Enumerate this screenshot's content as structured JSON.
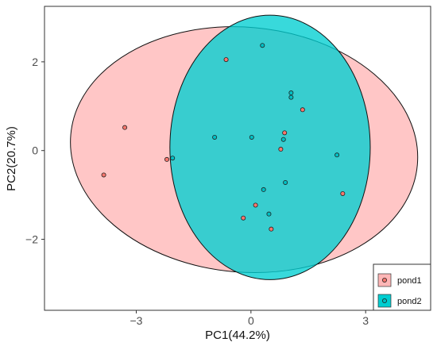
{
  "chart_data": {
    "type": "scatter",
    "title": "",
    "xlabel": "PC1(44.2%)",
    "ylabel": "PC2(20.7%)",
    "xlim": [
      -5.4,
      4.7
    ],
    "ylim": [
      -3.6,
      3.25
    ],
    "xticks": [
      -3,
      0,
      3
    ],
    "xtick_labels": [
      "−3",
      "0",
      "3"
    ],
    "yticks": [
      -2,
      0,
      2
    ],
    "ytick_labels": [
      "−2",
      "0",
      "2"
    ],
    "grid": false,
    "legend_position": "bottom-right",
    "series": [
      {
        "name": "pond1",
        "color": "#F8766D",
        "fill": "#FFB6B6",
        "ellipse": {
          "cx": -0.18,
          "cy": 0.02,
          "rx": 4.55,
          "ry": 2.76,
          "angle": -5
        },
        "points": [
          {
            "x": -0.65,
            "y": 2.05
          },
          {
            "x": -3.3,
            "y": 0.52
          },
          {
            "x": -3.85,
            "y": -0.55
          },
          {
            "x": -2.2,
            "y": -0.2
          },
          {
            "x": 1.35,
            "y": 0.92
          },
          {
            "x": 0.88,
            "y": 0.4
          },
          {
            "x": 0.78,
            "y": 0.03
          },
          {
            "x": 2.4,
            "y": -0.97
          },
          {
            "x": 0.12,
            "y": -1.23
          },
          {
            "x": -0.2,
            "y": -1.52
          },
          {
            "x": 0.53,
            "y": -1.77
          }
        ]
      },
      {
        "name": "pond2",
        "color": "#00BFC4",
        "fill": "#00CED1",
        "ellipse": {
          "cx": 0.5,
          "cy": 0.07,
          "rx": 2.62,
          "ry": 2.98,
          "angle": 0
        },
        "points": [
          {
            "x": 0.3,
            "y": 2.37
          },
          {
            "x": 1.05,
            "y": 1.3
          },
          {
            "x": 1.05,
            "y": 1.2
          },
          {
            "x": -0.95,
            "y": 0.3
          },
          {
            "x": 0.02,
            "y": 0.3
          },
          {
            "x": 0.85,
            "y": 0.25
          },
          {
            "x": 2.25,
            "y": -0.1
          },
          {
            "x": -2.05,
            "y": -0.17
          },
          {
            "x": 0.9,
            "y": -0.72
          },
          {
            "x": 0.33,
            "y": -0.88
          },
          {
            "x": 0.47,
            "y": -1.43
          }
        ]
      }
    ]
  }
}
